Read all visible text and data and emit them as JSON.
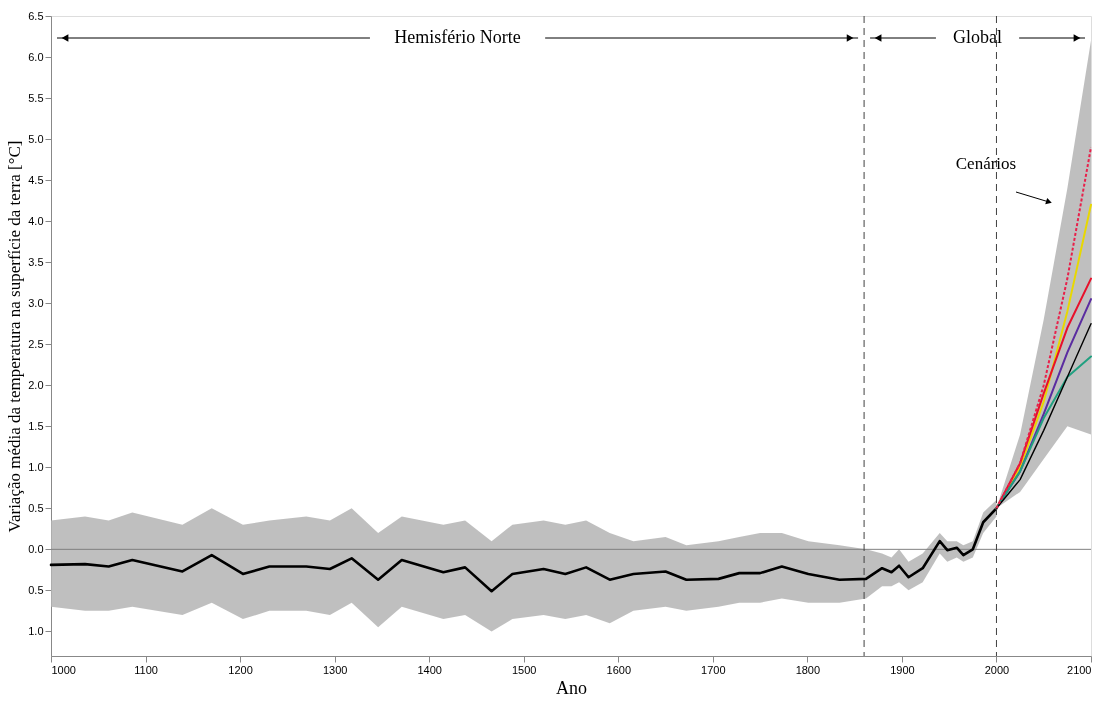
{
  "chart_data": {
    "type": "line",
    "xlabel": "Ano",
    "ylabel": "Variação média da temperatura na superfície da terra [°C]",
    "xlim": [
      1000,
      2100
    ],
    "ylim": [
      -1.3,
      6.5
    ],
    "xticks": [
      1000,
      1100,
      1200,
      1300,
      1400,
      1500,
      1600,
      1700,
      1800,
      1900,
      2000,
      2100
    ],
    "yticks": [
      {
        "value": -1.0,
        "label": "1.0"
      },
      {
        "value": -0.5,
        "label": "0.5"
      },
      {
        "value": 0,
        "label": "0.0"
      },
      {
        "value": 0.5,
        "label": "0.5"
      },
      {
        "value": 1.0,
        "label": "1.0"
      },
      {
        "value": 1.5,
        "label": "1.5"
      },
      {
        "value": 2.0,
        "label": "2.0"
      },
      {
        "value": 2.5,
        "label": "2.5"
      },
      {
        "value": 3.0,
        "label": "3.0"
      },
      {
        "value": 3.5,
        "label": "3.5"
      },
      {
        "value": 4.0,
        "label": "4.0"
      },
      {
        "value": 4.5,
        "label": "4.5"
      },
      {
        "value": 5.0,
        "label": "5.0"
      },
      {
        "value": 5.5,
        "label": "5.5"
      },
      {
        "value": 6.0,
        "label": "6.0"
      },
      {
        "value": 6.5,
        "label": "6.5"
      }
    ],
    "grid": false,
    "marker": "none",
    "series": [
      {
        "color": "#000000",
        "x": [
          1000,
          1036,
          1061,
          1086,
          1139,
          1170,
          1203,
          1231,
          1270,
          1295,
          1318,
          1346,
          1371,
          1415,
          1438,
          1466,
          1488,
          1521,
          1544,
          1566,
          1591,
          1616,
          1650,
          1672,
          1706,
          1728,
          1750,
          1773,
          1801,
          1834,
          1862,
          1879,
          1889,
          1897,
          1907,
          1922,
          1940,
          1948,
          1958,
          1965,
          1975,
          1986,
          2000
        ],
        "values": [
          -0.19,
          -0.18,
          -0.21,
          -0.13,
          -0.27,
          -0.07,
          -0.3,
          -0.21,
          -0.21,
          -0.24,
          -0.11,
          -0.37,
          -0.13,
          -0.28,
          -0.22,
          -0.51,
          -0.3,
          -0.24,
          -0.3,
          -0.22,
          -0.37,
          -0.3,
          -0.27,
          -0.37,
          -0.36,
          -0.29,
          -0.29,
          -0.21,
          -0.3,
          -0.37,
          -0.36,
          -0.23,
          -0.28,
          -0.2,
          -0.34,
          -0.23,
          0.1,
          -0.01,
          0.02,
          -0.07,
          0.0,
          0.33,
          0.5
        ],
        "lower": [
          -0.7,
          -0.75,
          -0.75,
          -0.7,
          -0.8,
          -0.65,
          -0.85,
          -0.75,
          -0.75,
          -0.8,
          -0.65,
          -0.95,
          -0.7,
          -0.85,
          -0.8,
          -1.0,
          -0.85,
          -0.8,
          -0.85,
          -0.8,
          -0.9,
          -0.75,
          -0.7,
          -0.75,
          -0.7,
          -0.65,
          -0.65,
          -0.6,
          -0.65,
          -0.65,
          -0.6,
          -0.45,
          -0.45,
          -0.4,
          -0.5,
          -0.4,
          -0.05,
          -0.15,
          -0.1,
          -0.15,
          -0.1,
          0.2,
          0.4
        ],
        "upper": [
          0.35,
          0.4,
          0.35,
          0.45,
          0.3,
          0.5,
          0.3,
          0.35,
          0.4,
          0.35,
          0.5,
          0.2,
          0.4,
          0.3,
          0.35,
          0.1,
          0.3,
          0.35,
          0.3,
          0.35,
          0.2,
          0.1,
          0.15,
          0.05,
          0.1,
          0.15,
          0.2,
          0.2,
          0.1,
          0.05,
          0.0,
          -0.05,
          -0.1,
          0.0,
          -0.15,
          -0.05,
          0.2,
          0.1,
          0.1,
          0.05,
          0.1,
          0.45,
          0.6
        ]
      },
      {
        "color": "#e8204a",
        "line_style": "dotted",
        "x": [
          2000,
          2025,
          2050,
          2075,
          2100
        ],
        "values": [
          0.5,
          1.05,
          2.0,
          3.3,
          4.9
        ]
      },
      {
        "color": "#e8d800",
        "x": [
          2000,
          2025,
          2050,
          2075,
          2100
        ],
        "values": [
          0.5,
          1.0,
          1.8,
          2.9,
          4.2
        ]
      },
      {
        "color": "#e8102a",
        "x": [
          2000,
          2025,
          2050,
          2075,
          2100
        ],
        "values": [
          0.5,
          1.05,
          1.9,
          2.7,
          3.3
        ]
      },
      {
        "color": "#5a2ca0",
        "x": [
          2000,
          2025,
          2050,
          2075,
          2100
        ],
        "values": [
          0.5,
          0.95,
          1.65,
          2.4,
          3.05
        ]
      },
      {
        "color": "#20a080",
        "x": [
          2000,
          2025,
          2050,
          2075,
          2100
        ],
        "values": [
          0.5,
          0.95,
          1.6,
          2.1,
          2.35
        ]
      },
      {
        "color": "#000000",
        "x": [
          2000,
          2025,
          2050,
          2075,
          2100
        ],
        "values": [
          0.5,
          0.85,
          1.45,
          2.1,
          2.75
        ],
        "lower": [
          0.5,
          0.7,
          1.1,
          1.5,
          1.4
        ],
        "upper": [
          0.5,
          1.4,
          2.8,
          4.4,
          6.2
        ]
      }
    ],
    "ref_lines": [
      {
        "axis": "y",
        "value": 0,
        "color": "#808080",
        "line_style": "solid"
      },
      {
        "axis": "x",
        "value": 1860,
        "color": "#404040",
        "line_style": "dashed"
      },
      {
        "axis": "x",
        "value": 2000,
        "color": "#404040",
        "line_style": "dashed"
      }
    ],
    "annotations": [
      "Hemisfério Norte",
      "Global",
      "Cenários"
    ]
  }
}
